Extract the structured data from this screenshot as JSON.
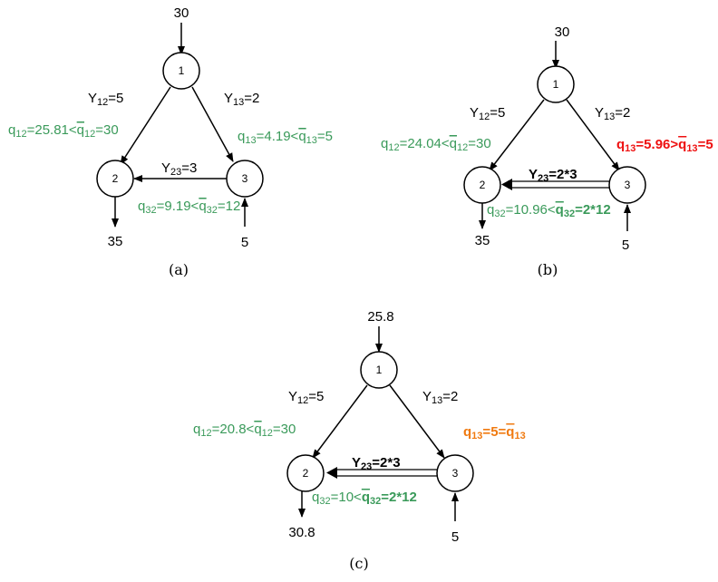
{
  "colors": {
    "green": "#3a9a5a",
    "red": "#ee1111",
    "orange": "#f07a10",
    "black": "#000000"
  },
  "panels": {
    "a": {
      "caption": "(a)",
      "node1": "1",
      "node2": "2",
      "node3": "3",
      "inflow1": "30",
      "outflow2": "35",
      "inflow3": "5",
      "y12": {
        "base": "Y",
        "sub": "12",
        "rest": "=5"
      },
      "y13": {
        "base": "Y",
        "sub": "13",
        "rest": "=2"
      },
      "y23": {
        "base": "Y",
        "sub": "23",
        "rest": "=3"
      },
      "q12": {
        "a": "q",
        "s1": "12",
        "b": "=25.81<",
        "c": "q",
        "s2": "12",
        "d": "=30"
      },
      "q13": {
        "a": "q",
        "s1": "13",
        "b": "=4.19<",
        "c": "q",
        "s2": "13",
        "d": "=5"
      },
      "q32": {
        "a": "q",
        "s1": "32",
        "b": "=9.19<",
        "c": "q",
        "s2": "32",
        "d": "=12"
      }
    },
    "b": {
      "caption": "(b)",
      "node1": "1",
      "node2": "2",
      "node3": "3",
      "inflow1": "30",
      "outflow2": "35",
      "inflow3": "5",
      "y12": {
        "base": "Y",
        "sub": "12",
        "rest": "=5"
      },
      "y13": {
        "base": "Y",
        "sub": "13",
        "rest": "=2"
      },
      "y23": {
        "base": "Y",
        "sub": "23",
        "rest": "=2*3"
      },
      "q12": {
        "a": "q",
        "s1": "12",
        "b": "=24.04<",
        "c": "q",
        "s2": "12",
        "d": "=30"
      },
      "q13": {
        "a": "q",
        "s1": "13",
        "b": "=5.96>",
        "c": "q",
        "s2": "13",
        "d": "=5"
      },
      "q32": {
        "a": "q",
        "s1": "32",
        "b": "=10.96<",
        "c": "q",
        "s2": "32",
        "d": "=2*12"
      }
    },
    "c": {
      "caption": "(c)",
      "node1": "1",
      "node2": "2",
      "node3": "3",
      "inflow1": "25.8",
      "outflow2": "30.8",
      "inflow3": "5",
      "y12": {
        "base": "Y",
        "sub": "12",
        "rest": "=5"
      },
      "y13": {
        "base": "Y",
        "sub": "13",
        "rest": "=2"
      },
      "y23": {
        "base": "Y",
        "sub": "23",
        "rest": "=2*3"
      },
      "q12": {
        "a": "q",
        "s1": "12",
        "b": "=20.8<",
        "c": "q",
        "s2": "12",
        "d": "=30"
      },
      "q13": {
        "a": "q",
        "s1": "13",
        "b": "=",
        "c": "q",
        "s2": "13",
        "d": ""
      },
      "q13_value": "5",
      "q32": {
        "a": "q",
        "s1": "32",
        "b": "=10<",
        "c": "q",
        "s2": "32",
        "d": "=2*12"
      }
    }
  }
}
